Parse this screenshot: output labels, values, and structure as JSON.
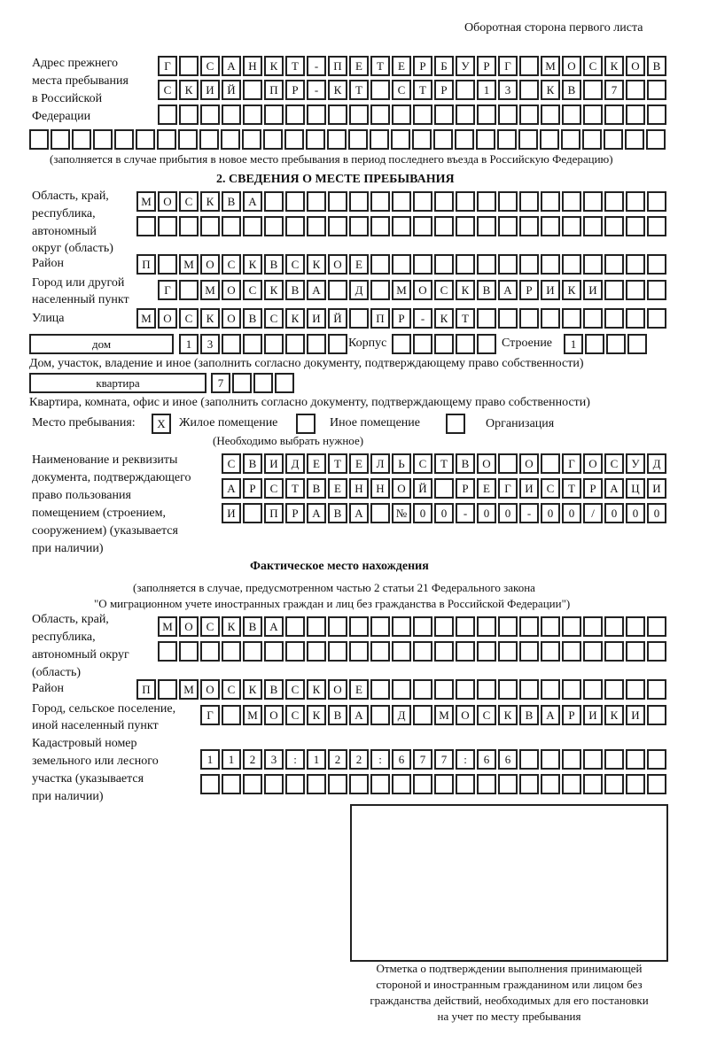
{
  "page_header": "Оборотная сторона первого листа",
  "prev_address": {
    "label": [
      "Адрес прежнего",
      "места пребывания",
      "в Российской",
      "Федерации"
    ],
    "rows": [
      [
        "Г",
        "",
        "С",
        "А",
        "Н",
        "К",
        "Т",
        "-",
        "П",
        "Е",
        "Т",
        "Е",
        "Р",
        "Б",
        "У",
        "Р",
        "Г",
        "",
        "М",
        "О",
        "С",
        "К",
        "О",
        "В"
      ],
      [
        "С",
        "К",
        "И",
        "Й",
        "",
        "П",
        "Р",
        "-",
        "К",
        "Т",
        "",
        "С",
        "Т",
        "Р",
        "",
        "1",
        "3",
        "",
        "К",
        "В",
        "",
        "7",
        "",
        ""
      ],
      [
        "",
        "",
        "",
        "",
        "",
        "",
        "",
        "",
        "",
        "",
        "",
        "",
        "",
        "",
        "",
        "",
        "",
        "",
        "",
        "",
        "",
        "",
        "",
        ""
      ],
      [
        "",
        "",
        "",
        "",
        "",
        "",
        "",
        "",
        "",
        "",
        "",
        "",
        "",
        "",
        "",
        "",
        "",
        "",
        "",
        "",
        "",
        "",
        "",
        "",
        "",
        "",
        "",
        "",
        "",
        ""
      ]
    ],
    "note": "(заполняется в случае прибытия в новое место пребывания в период последнего въезда в Российскую Федерацию)"
  },
  "section2": {
    "title": "2. СВЕДЕНИЯ О МЕСТЕ ПРЕБЫВАНИЯ",
    "region_label": [
      "Область, край,",
      "республика,",
      "автономный",
      "округ (область)"
    ],
    "region_rows": [
      [
        "М",
        "О",
        "С",
        "К",
        "В",
        "А",
        "",
        "",
        "",
        "",
        "",
        "",
        "",
        "",
        "",
        "",
        "",
        "",
        "",
        "",
        "",
        "",
        "",
        "",
        ""
      ],
      [
        "",
        "",
        "",
        "",
        "",
        "",
        "",
        "",
        "",
        "",
        "",
        "",
        "",
        "",
        "",
        "",
        "",
        "",
        "",
        "",
        "",
        "",
        "",
        "",
        ""
      ]
    ],
    "district_label": "Район",
    "district_row": [
      "П",
      "",
      "М",
      "О",
      "С",
      "К",
      "В",
      "С",
      "К",
      "О",
      "Е",
      "",
      "",
      "",
      "",
      "",
      "",
      "",
      "",
      "",
      "",
      "",
      "",
      "",
      ""
    ],
    "city_label": [
      "Город или другой",
      "населенный пункт"
    ],
    "city_row": [
      "Г",
      "",
      "М",
      "О",
      "С",
      "К",
      "В",
      "А",
      "",
      "Д",
      "",
      "М",
      "О",
      "С",
      "К",
      "В",
      "А",
      "Р",
      "И",
      "К",
      "И",
      "",
      "",
      ""
    ],
    "street_label": "Улица",
    "street_row": [
      "М",
      "О",
      "С",
      "К",
      "О",
      "В",
      "С",
      "К",
      "И",
      "Й",
      "",
      "П",
      "Р",
      "-",
      "К",
      "Т",
      "",
      "",
      "",
      "",
      "",
      "",
      "",
      "",
      ""
    ],
    "house_type": "дом",
    "house_cells": [
      "1",
      "3",
      "",
      "",
      "",
      "",
      "",
      ""
    ],
    "korpus_label": "Корпус",
    "korpus_cells": [
      "",
      "",
      "",
      "",
      ""
    ],
    "building_label": "Строение",
    "building_cells": [
      "1",
      "",
      "",
      ""
    ],
    "house_note": "Дом, участок, владение и иное (заполнить согласно документу, подтверждающему право собственности)",
    "apt_type": "квартира",
    "apt_cells": [
      "7",
      "",
      "",
      ""
    ],
    "apt_note": "Квартира, комната, офис и иное (заполнить согласно документу, подтверждающему право собственности)",
    "stay_place_label": "Место пребывания:",
    "options": [
      {
        "mark": "X",
        "label": "Жилое помещение",
        "checked": true
      },
      {
        "mark": "",
        "label": "Иное помещение",
        "checked": false
      },
      {
        "mark": "",
        "label": "Организация",
        "checked": false
      }
    ],
    "choose_note": "(Необходимо выбрать нужное)",
    "doc_label": [
      "Наименование и реквизиты",
      "документа, подтверждающего",
      "право пользования",
      "помещением (строением,",
      "сооружением) (указывается",
      "при наличии)"
    ],
    "doc_rows": [
      [
        "С",
        "В",
        "И",
        "Д",
        "Е",
        "Т",
        "Е",
        "Л",
        "Ь",
        "С",
        "Т",
        "В",
        "О",
        "",
        "О",
        "",
        "Г",
        "О",
        "С",
        "У",
        "Д"
      ],
      [
        "А",
        "Р",
        "С",
        "Т",
        "В",
        "Е",
        "Н",
        "Н",
        "О",
        "Й",
        "",
        "Р",
        "Е",
        "Г",
        "И",
        "С",
        "Т",
        "Р",
        "А",
        "Ц",
        "И"
      ],
      [
        "И",
        "",
        "П",
        "Р",
        "А",
        "В",
        "А",
        "",
        "№",
        "0",
        "0",
        "-",
        "0",
        "0",
        "-",
        "0",
        "0",
        "/",
        "0",
        "0",
        "0"
      ]
    ]
  },
  "actual": {
    "title": "Фактическое место нахождения",
    "note": [
      "(заполняется в случае, предусмотренном частью 2 статьи 21 Федерального закона",
      "\"О миграционном учете иностранных граждан и лиц без гражданства в Российской Федерации\")"
    ],
    "region_label": [
      "Область, край,",
      "республика,",
      "автономный округ",
      "(область)"
    ],
    "region_rows": [
      [
        "М",
        "О",
        "С",
        "К",
        "В",
        "А",
        "",
        "",
        "",
        "",
        "",
        "",
        "",
        "",
        "",
        "",
        "",
        "",
        "",
        "",
        "",
        "",
        "",
        ""
      ],
      [
        "",
        "",
        "",
        "",
        "",
        "",
        "",
        "",
        "",
        "",
        "",
        "",
        "",
        "",
        "",
        "",
        "",
        "",
        "",
        "",
        "",
        "",
        "",
        ""
      ]
    ],
    "district_label": "Район",
    "district_row": [
      "П",
      "",
      "М",
      "О",
      "С",
      "К",
      "В",
      "С",
      "К",
      "О",
      "Е",
      "",
      "",
      "",
      "",
      "",
      "",
      "",
      "",
      "",
      "",
      "",
      "",
      "",
      ""
    ],
    "city_label": [
      "Город, сельское поселение,",
      "иной населенный пункт"
    ],
    "city_row": [
      "Г",
      "",
      "М",
      "О",
      "С",
      "К",
      "В",
      "А",
      "",
      "Д",
      "",
      "М",
      "О",
      "С",
      "К",
      "В",
      "А",
      "Р",
      "И",
      "К",
      "И",
      ""
    ],
    "cadastre_label": [
      "Кадастровый номер",
      "земельного или лесного",
      "участка (указывается",
      "при наличии)"
    ],
    "cadastre_rows": [
      [
        "1",
        "1",
        "2",
        "3",
        ":",
        "1",
        "2",
        "2",
        ":",
        "6",
        "7",
        "7",
        ":",
        "6",
        "6",
        "",
        "",
        "",
        "",
        "",
        "",
        ""
      ],
      [
        "",
        "",
        "",
        "",
        "",
        "",
        "",
        "",
        "",
        "",
        "",
        "",
        "",
        "",
        "",
        "",
        "",
        "",
        "",
        "",
        "",
        ""
      ]
    ]
  },
  "stamp_caption": [
    "Отметка о подтверждении выполнения принимающей",
    "стороной и иностранным гражданином или лицом без",
    "гражданства действий, необходимых для его постановки",
    "на учет по месту пребывания"
  ]
}
